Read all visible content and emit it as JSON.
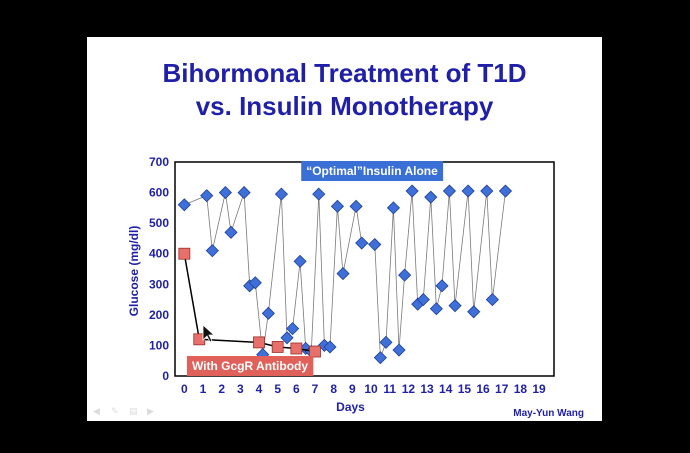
{
  "slide": {
    "title_line1": "Bihormonal Treatment of T1D",
    "title_line2": "vs. Insulin Monotherapy",
    "credit": "May-Yun Wang",
    "controls": [
      "prev-icon",
      "pen-icon",
      "menu-icon",
      "next-icon"
    ]
  },
  "chart_data": {
    "type": "line",
    "title": "",
    "xlabel": "Days",
    "ylabel": "Glucose (mg/dl)",
    "xlim": [
      -0.5,
      19.8
    ],
    "ylim": [
      0,
      700
    ],
    "xticks": [
      0,
      1,
      2,
      3,
      4,
      5,
      6,
      7,
      8,
      9,
      10,
      11,
      12,
      13,
      14,
      15,
      16,
      17,
      18,
      19
    ],
    "yticks": [
      0,
      100,
      200,
      300,
      400,
      500,
      600,
      700
    ],
    "grid": false,
    "series": [
      {
        "name": "“Optimal”Insulin Alone",
        "color": "#3f6fd8",
        "label_bg": "#3a6fd6",
        "marker": "diamond",
        "points": [
          [
            0.0,
            560
          ],
          [
            1.2,
            590
          ],
          [
            1.5,
            410
          ],
          [
            2.2,
            600
          ],
          [
            2.5,
            470
          ],
          [
            3.2,
            600
          ],
          [
            3.5,
            295
          ],
          [
            3.8,
            305
          ],
          [
            4.2,
            70
          ],
          [
            4.5,
            205
          ],
          [
            5.2,
            595
          ],
          [
            5.5,
            125
          ],
          [
            5.8,
            155
          ],
          [
            6.2,
            375
          ],
          [
            6.5,
            90
          ],
          [
            6.8,
            80
          ],
          [
            7.2,
            595
          ],
          [
            7.5,
            100
          ],
          [
            7.8,
            95
          ],
          [
            8.2,
            555
          ],
          [
            8.5,
            335
          ],
          [
            9.2,
            555
          ],
          [
            9.5,
            435
          ],
          [
            10.2,
            430
          ],
          [
            10.5,
            60
          ],
          [
            10.8,
            110
          ],
          [
            11.2,
            550
          ],
          [
            11.5,
            85
          ],
          [
            11.8,
            330
          ],
          [
            12.2,
            605
          ],
          [
            12.5,
            235
          ],
          [
            12.8,
            250
          ],
          [
            13.2,
            585
          ],
          [
            13.5,
            220
          ],
          [
            13.8,
            295
          ],
          [
            14.2,
            605
          ],
          [
            14.5,
            230
          ],
          [
            15.2,
            605
          ],
          [
            15.5,
            210
          ],
          [
            16.2,
            605
          ],
          [
            16.5,
            250
          ],
          [
            17.2,
            605
          ]
        ]
      },
      {
        "name": "With GcgR Antibody",
        "color": "#e8706a",
        "label_bg": "#e0605a",
        "marker": "square",
        "points": [
          [
            0.0,
            400
          ],
          [
            0.8,
            120
          ],
          [
            4.0,
            110
          ],
          [
            5.0,
            95
          ],
          [
            6.0,
            90
          ],
          [
            7.0,
            80
          ]
        ]
      }
    ]
  }
}
